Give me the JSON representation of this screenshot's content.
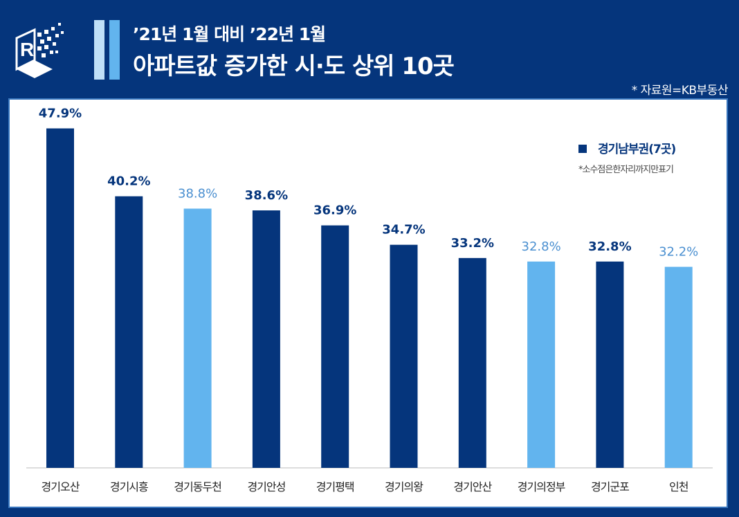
{
  "header": {
    "subtitle": "’21년 1월 대비 ’22년 1월",
    "title": "아파트값 증가한 시·도 상위 10곳",
    "source": "* 자료원=KB부동산"
  },
  "colors": {
    "background": "#05357c",
    "dark_bar": "#05357c",
    "light_bar": "#62b4ee",
    "accent1": "#bfe0f8",
    "accent2": "#62b4ee"
  },
  "chart_data": {
    "type": "bar",
    "categories": [
      "경기오산",
      "경기시흥",
      "경기동두천",
      "경기안성",
      "경기평택",
      "경기의왕",
      "경기안산",
      "경기의정부",
      "경기군포",
      "인천"
    ],
    "values": [
      47.9,
      40.2,
      38.8,
      38.6,
      36.9,
      34.7,
      33.2,
      32.8,
      32.8,
      32.2
    ],
    "labels": [
      "47.9%",
      "40.2%",
      "38.8%",
      "38.6%",
      "36.9%",
      "34.7%",
      "33.2%",
      "32.8%",
      "32.8%",
      "32.2%"
    ],
    "highlight": [
      true,
      true,
      false,
      true,
      true,
      true,
      true,
      false,
      true,
      false
    ],
    "legend": {
      "label": "경기남부권(7곳)",
      "note": "*소수점은한자리까지만표기",
      "placement": "top-right"
    },
    "ylim": [
      9.4,
      50
    ]
  }
}
